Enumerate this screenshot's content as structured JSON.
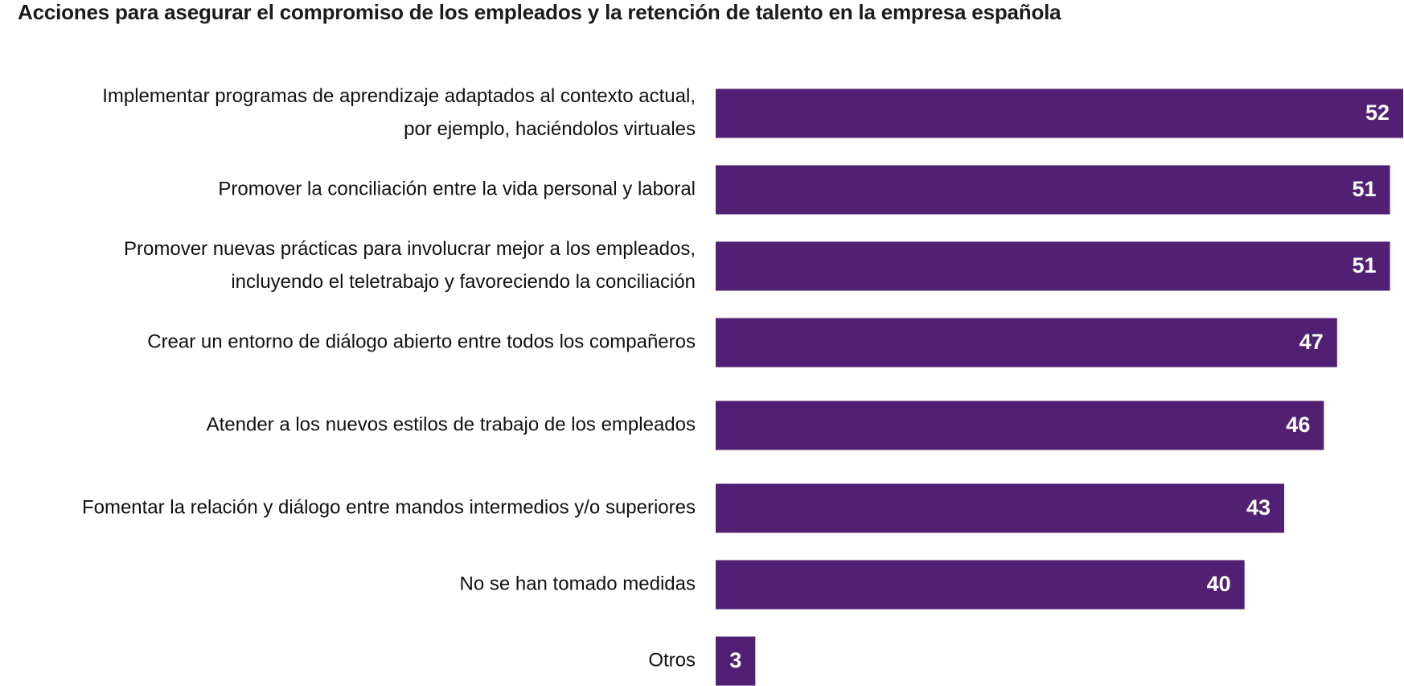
{
  "colors": {
    "bar": "#512073",
    "value_text": "#ffffff",
    "label_text": "#111111",
    "title_text": "#1b1b1b"
  },
  "chart_data": {
    "type": "bar",
    "orientation": "horizontal",
    "title": "Acciones para asegurar el compromiso de los empleados y la retención de talento en la empresa española",
    "xlabel": "",
    "ylabel": "",
    "xlim": [
      0,
      52
    ],
    "grid": false,
    "legend": "none",
    "categories": [
      [
        "Implementar programas de aprendizaje adaptados al contexto actual,",
        "por ejemplo, haciéndolos virtuales"
      ],
      [
        "Promover la conciliación entre la vida personal y laboral"
      ],
      [
        "Promover nuevas prácticas para involucrar mejor a los empleados,",
        "incluyendo el teletrabajo y favoreciendo la conciliación"
      ],
      [
        "Crear un entorno de diálogo abierto entre todos los compañeros"
      ],
      [
        "Atender a los nuevos estilos de trabajo de los empleados"
      ],
      [
        "Fomentar la relación y diálogo entre mandos intermedios y/o superiores"
      ],
      [
        "No se han tomado medidas"
      ],
      [
        "Otros"
      ]
    ],
    "values": [
      52,
      51,
      51,
      47,
      46,
      43,
      40,
      3
    ]
  }
}
